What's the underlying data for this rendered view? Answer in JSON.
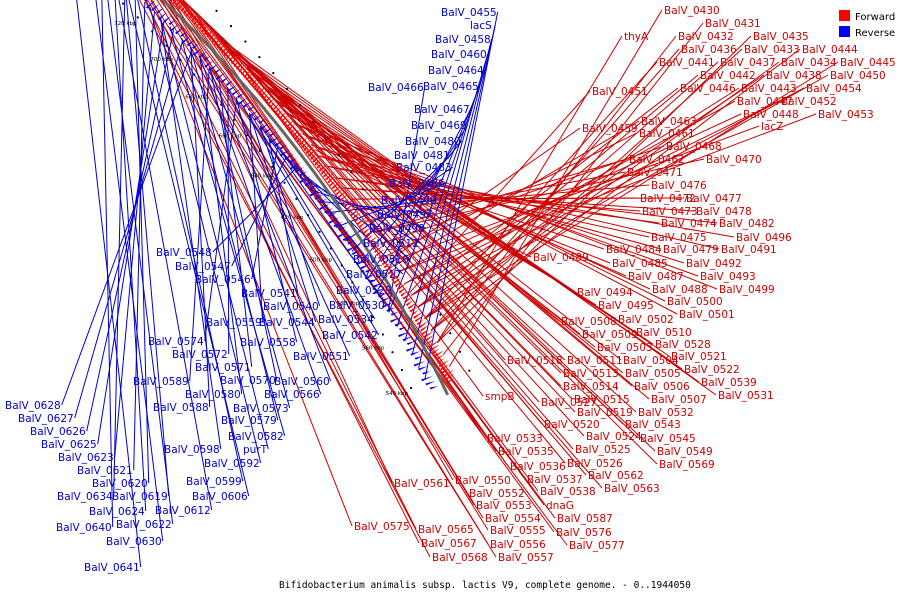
{
  "caption": "Bifidobacterium animalis subsp. lactis V9, complete genome. - 0..1944050",
  "legend": [
    {
      "label": "Forward",
      "color": "#ff0000"
    },
    {
      "label": "Reverse",
      "color": "#0000ff"
    }
  ],
  "colors": {
    "forward": "#ff0000",
    "reverse": "#0000ff",
    "backbone": "#666666"
  },
  "ticks": [
    "540 kbp",
    "560 kbp",
    "580 kbp",
    "600 kbp",
    "620 kbp",
    "640 kbp",
    "660 kbp",
    "680 kbp",
    "700 kbp",
    "720 kbp",
    "740 kbp",
    "760 kbp"
  ],
  "forward_genes": [
    "BalV_0430",
    "BalV_0431",
    "BalV_0432",
    "BalV_0435",
    "thyA",
    "BalV_0436",
    "BalV_0433",
    "BalV_0444",
    "BalV_0441",
    "BalV_0437",
    "BalV_0434",
    "BalV_0445",
    "BalV_0442",
    "BalV_0438",
    "BalV_0450",
    "BalV_0446",
    "BalV_0443",
    "BalV_0454",
    "BalV_0451",
    "BalV_0447",
    "BalV_0452",
    "BalV_0448",
    "BalV_0453",
    "lacZ",
    "BalV_0463",
    "BalV_0459",
    "BalV_0461",
    "BalV_0468",
    "BalV_0462",
    "BalV_0470",
    "BalV_0471",
    "BalV_0476",
    "BalV_0472",
    "BalV_0477",
    "BalV_0473",
    "BalV_0478",
    "BalV_0474",
    "BalV_0482",
    "BalV_0475",
    "BalV_0496",
    "BalV_0489",
    "BalV_0484",
    "BalV_0479",
    "BalV_0491",
    "BalV_0485",
    "BalV_0492",
    "BalV_0487",
    "BalV_0493",
    "BalV_0488",
    "BalV_0499",
    "BalV_0494",
    "BalV_0500",
    "BalV_0495",
    "BalV_0501",
    "BalV_0508",
    "BalV_0502",
    "BalV_0509",
    "BalV_0510",
    "BalV_0503",
    "BalV_0528",
    "BalV_0518",
    "BalV_0511",
    "BalV_0504",
    "BalV_0521",
    "BalV_0513",
    "BalV_0505",
    "BalV_0522",
    "BalV_0514",
    "BalV_0506",
    "BalV_0539",
    "smpB",
    "BalV_0515",
    "BalV_0507",
    "BalV_0531",
    "BalV_0527",
    "BalV_0519",
    "BalV_0532",
    "BalV_0520",
    "BalV_0543",
    "BalV_0533",
    "BalV_0524",
    "BalV_0545",
    "BalV_0535",
    "BalV_0525",
    "BalV_0549",
    "BalV_0536",
    "BalV_0526",
    "BalV_0569",
    "BalV_0561",
    "BalV_0550",
    "BalV_0537",
    "BalV_0562",
    "BalV_0552",
    "BalV_0538",
    "BalV_0563",
    "BalV_0553",
    "dnaG",
    "BalV_0554",
    "BalV_0587",
    "BalV_0575",
    "BalV_0565",
    "BalV_0555",
    "BalV_0576",
    "BalV_0567",
    "BalV_0556",
    "BalV_0577",
    "BalV_0568",
    "BalV_0557"
  ],
  "reverse_genes": [
    "BalV_0455",
    "lacS",
    "BalV_0458",
    "BalV_0460",
    "BalV_0464",
    "BalV_0466",
    "BalV_0465",
    "BalV_0467",
    "BalV_0469",
    "BalV_0480",
    "BalV_0481",
    "BalV_0483",
    "BalV_0486",
    "BalV_0490",
    "BalV_0497",
    "BalV_0498",
    "BalV_0512",
    "BalV_0516",
    "BalV_0517",
    "BalV_0529",
    "BalV_0530",
    "BalV_0534",
    "BalV_0542",
    "BalV_0548",
    "BalV_0547",
    "BalV_0546",
    "BalV_0541",
    "BalV_0540",
    "BalV_0559",
    "BalV_0544",
    "BalV_0558",
    "BalV_0551",
    "BalV_0574",
    "BalV_0572",
    "BalV_0571",
    "BalV_0570",
    "BalV_0560",
    "BalV_0589",
    "BalV_0580",
    "BalV_0566",
    "BalV_0588",
    "BalV_0573",
    "BalV_0579",
    "BalV_0582",
    "BalV_0598",
    "purT",
    "BalV_0592",
    "BalV_0599",
    "BalV_0606",
    "BalV_0612",
    "BalV_0628",
    "BalV_0627",
    "BalV_0626",
    "BalV_0625",
    "BalV_0623",
    "BalV_0621",
    "BalV_0620",
    "BalV_0634",
    "BalV_0619",
    "BalV_0624",
    "BalV_0622",
    "BalV_0640",
    "BalV_0630",
    "BalV_0641"
  ]
}
